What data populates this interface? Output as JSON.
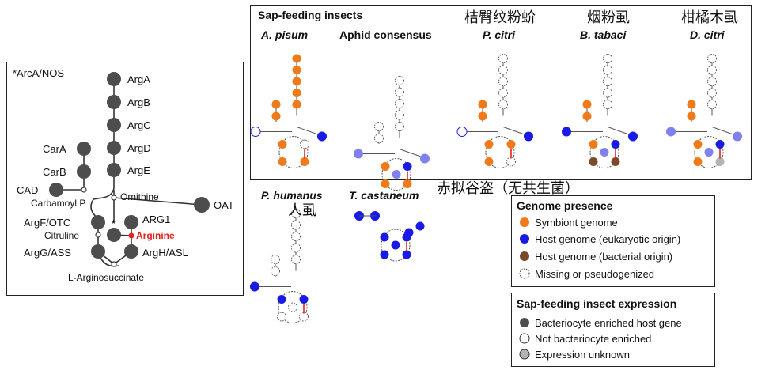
{
  "colors": {
    "symbiont": "#f07a1a",
    "host_euk": "#1a1ae6",
    "host_bact": "#7a4a2a",
    "bacteriocyte": "#4d4d4d",
    "unknown": "#b3b3b3",
    "arginine": "#e8201c",
    "sap_fill": "#8080ee"
  },
  "left_panel": {
    "title": "*ArcA/NOS",
    "nodes": {
      "arga": "ArgA",
      "argb": "ArgB",
      "argc": "ArgC",
      "argd": "ArgD",
      "arge": "ArgE",
      "cara": "CarA",
      "carb": "CarB",
      "cad": "CAD",
      "oat": "OAT",
      "argf": "ArgF/OTC",
      "arg1": "ARG1",
      "argg": "ArgG/ASS",
      "argh": "ArgH/ASL",
      "ornithine": "Ornithine",
      "carbamoyl": "Carbamoyl P",
      "citruline": "Citruline",
      "arginine": "Arginine",
      "argininosuccinate": "L-Arginosuccinate",
      "star": "*"
    }
  },
  "sap_panel": {
    "title": "Sap-feeding insects",
    "species": [
      {
        "name": "A. pisum",
        "cn": ""
      },
      {
        "name": "Aphid consensus",
        "cn": ""
      },
      {
        "name": "P. citri",
        "cn": "桔臀纹粉蚧"
      },
      {
        "name": "B. tabaci",
        "cn": "烟粉虱"
      },
      {
        "name": "D. citri",
        "cn": "柑橘木虱"
      }
    ]
  },
  "other_species": [
    {
      "name": "P. humanus",
      "cn": "人虱"
    },
    {
      "name": "T. castaneum",
      "cn": "赤拟谷盗（无共生菌）"
    }
  ],
  "legend_presence": {
    "title": "Genome presence",
    "items": [
      "Symbiont genome",
      "Host genome (eukaryotic origin)",
      "Host genome (bacterial origin)",
      "Missing or pseudogenized"
    ]
  },
  "legend_expression": {
    "title": "Sap-feeding insect expression",
    "items": [
      "Bacteriocyte enriched host gene",
      "Not bacteriocyte enriched",
      "Expression unknown"
    ]
  }
}
